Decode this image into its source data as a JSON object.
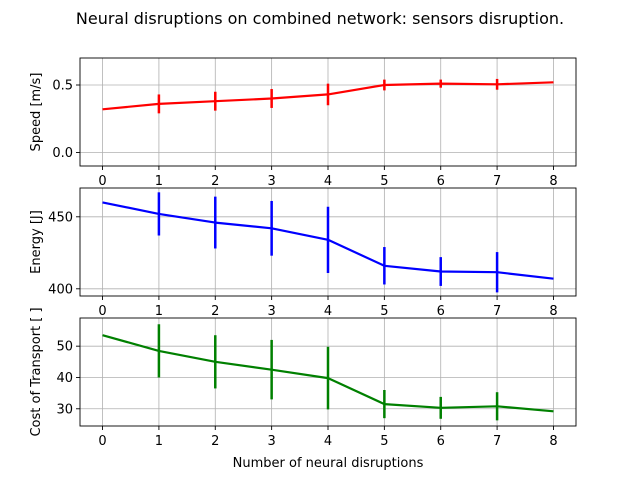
{
  "title": "Neural disruptions on combined network: sensors disruption.",
  "chart_data": [
    {
      "type": "line",
      "ylabel": "Speed [m/s]",
      "xlabel": "",
      "color": "#ff0000",
      "x": [
        0,
        1,
        2,
        3,
        4,
        5,
        6,
        7,
        8
      ],
      "x_ticks": [
        "0",
        "1",
        "2",
        "3",
        "4",
        "5",
        "6",
        "7",
        "8"
      ],
      "xlim": [
        -0.4,
        8.4
      ],
      "ylim": [
        -0.1,
        0.7
      ],
      "y_ticks": [
        0.0,
        0.5
      ],
      "y_tick_labels": [
        "0.0",
        "0.5"
      ],
      "grid": true,
      "values": [
        0.32,
        0.36,
        0.38,
        0.4,
        0.43,
        0.5,
        0.51,
        0.505,
        0.52
      ],
      "errors": [
        0,
        0.07,
        0.07,
        0.07,
        0.08,
        0.04,
        0.03,
        0.04,
        0
      ]
    },
    {
      "type": "line",
      "ylabel": "Energy [J]",
      "xlabel": "",
      "color": "#0000ff",
      "x": [
        0,
        1,
        2,
        3,
        4,
        5,
        6,
        7,
        8
      ],
      "x_ticks": [
        "0",
        "1",
        "2",
        "3",
        "4",
        "5",
        "6",
        "7",
        "8"
      ],
      "xlim": [
        -0.4,
        8.4
      ],
      "ylim": [
        395,
        470
      ],
      "y_ticks": [
        400,
        450
      ],
      "y_tick_labels": [
        "400",
        "450"
      ],
      "grid": true,
      "values": [
        460,
        452,
        446,
        442,
        434,
        416,
        412,
        411.5,
        407
      ],
      "errors": [
        0,
        15,
        18,
        19,
        23,
        13,
        10,
        14,
        0
      ]
    },
    {
      "type": "line",
      "ylabel": "Cost of Transport [ ]",
      "xlabel": "Number of neural disruptions",
      "color": "#008000",
      "x": [
        0,
        1,
        2,
        3,
        4,
        5,
        6,
        7,
        8
      ],
      "x_ticks": [
        "0",
        "1",
        "2",
        "3",
        "4",
        "5",
        "6",
        "7",
        "8"
      ],
      "xlim": [
        -0.4,
        8.4
      ],
      "ylim": [
        24.5,
        59
      ],
      "y_ticks": [
        30,
        40,
        50
      ],
      "y_tick_labels": [
        "30",
        "40",
        "50"
      ],
      "grid": true,
      "values": [
        53.5,
        48.5,
        45,
        42.5,
        39.8,
        31.5,
        30.3,
        30.8,
        29.2
      ],
      "errors": [
        0,
        8.5,
        8.5,
        9.5,
        10,
        4.5,
        3.5,
        4.5,
        0
      ]
    }
  ]
}
